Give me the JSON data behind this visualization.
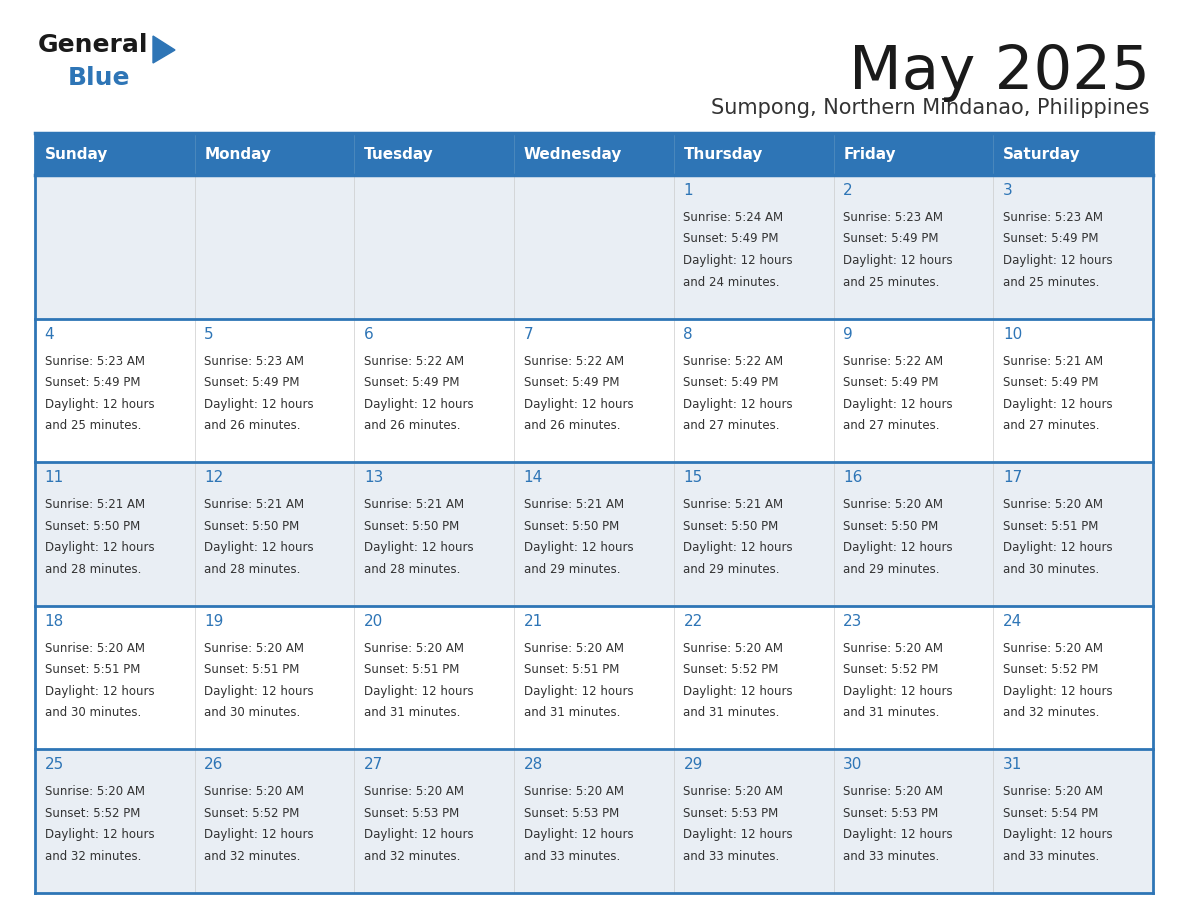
{
  "title": "May 2025",
  "subtitle": "Sumpong, Northern Mindanao, Philippines",
  "days_of_week": [
    "Sunday",
    "Monday",
    "Tuesday",
    "Wednesday",
    "Thursday",
    "Friday",
    "Saturday"
  ],
  "header_bg": "#2E75B6",
  "header_text": "#FFFFFF",
  "cell_bg_odd": "#E9EEF4",
  "cell_bg_even": "#FFFFFF",
  "border_color": "#2E75B6",
  "row_sep_color": "#2E75B6",
  "col_sep_color": "#CCCCCC",
  "text_color": "#333333",
  "day_num_color": "#2E75B6",
  "title_color": "#1A1A1A",
  "subtitle_color": "#333333",
  "calendar_data": [
    [
      {
        "day": null,
        "sunrise": null,
        "sunset": null,
        "daylight": null
      },
      {
        "day": null,
        "sunrise": null,
        "sunset": null,
        "daylight": null
      },
      {
        "day": null,
        "sunrise": null,
        "sunset": null,
        "daylight": null
      },
      {
        "day": null,
        "sunrise": null,
        "sunset": null,
        "daylight": null
      },
      {
        "day": 1,
        "sunrise": "5:24 AM",
        "sunset": "5:49 PM",
        "daylight": "12 hours and 24 minutes."
      },
      {
        "day": 2,
        "sunrise": "5:23 AM",
        "sunset": "5:49 PM",
        "daylight": "12 hours and 25 minutes."
      },
      {
        "day": 3,
        "sunrise": "5:23 AM",
        "sunset": "5:49 PM",
        "daylight": "12 hours and 25 minutes."
      }
    ],
    [
      {
        "day": 4,
        "sunrise": "5:23 AM",
        "sunset": "5:49 PM",
        "daylight": "12 hours and 25 minutes."
      },
      {
        "day": 5,
        "sunrise": "5:23 AM",
        "sunset": "5:49 PM",
        "daylight": "12 hours and 26 minutes."
      },
      {
        "day": 6,
        "sunrise": "5:22 AM",
        "sunset": "5:49 PM",
        "daylight": "12 hours and 26 minutes."
      },
      {
        "day": 7,
        "sunrise": "5:22 AM",
        "sunset": "5:49 PM",
        "daylight": "12 hours and 26 minutes."
      },
      {
        "day": 8,
        "sunrise": "5:22 AM",
        "sunset": "5:49 PM",
        "daylight": "12 hours and 27 minutes."
      },
      {
        "day": 9,
        "sunrise": "5:22 AM",
        "sunset": "5:49 PM",
        "daylight": "12 hours and 27 minutes."
      },
      {
        "day": 10,
        "sunrise": "5:21 AM",
        "sunset": "5:49 PM",
        "daylight": "12 hours and 27 minutes."
      }
    ],
    [
      {
        "day": 11,
        "sunrise": "5:21 AM",
        "sunset": "5:50 PM",
        "daylight": "12 hours and 28 minutes."
      },
      {
        "day": 12,
        "sunrise": "5:21 AM",
        "sunset": "5:50 PM",
        "daylight": "12 hours and 28 minutes."
      },
      {
        "day": 13,
        "sunrise": "5:21 AM",
        "sunset": "5:50 PM",
        "daylight": "12 hours and 28 minutes."
      },
      {
        "day": 14,
        "sunrise": "5:21 AM",
        "sunset": "5:50 PM",
        "daylight": "12 hours and 29 minutes."
      },
      {
        "day": 15,
        "sunrise": "5:21 AM",
        "sunset": "5:50 PM",
        "daylight": "12 hours and 29 minutes."
      },
      {
        "day": 16,
        "sunrise": "5:20 AM",
        "sunset": "5:50 PM",
        "daylight": "12 hours and 29 minutes."
      },
      {
        "day": 17,
        "sunrise": "5:20 AM",
        "sunset": "5:51 PM",
        "daylight": "12 hours and 30 minutes."
      }
    ],
    [
      {
        "day": 18,
        "sunrise": "5:20 AM",
        "sunset": "5:51 PM",
        "daylight": "12 hours and 30 minutes."
      },
      {
        "day": 19,
        "sunrise": "5:20 AM",
        "sunset": "5:51 PM",
        "daylight": "12 hours and 30 minutes."
      },
      {
        "day": 20,
        "sunrise": "5:20 AM",
        "sunset": "5:51 PM",
        "daylight": "12 hours and 31 minutes."
      },
      {
        "day": 21,
        "sunrise": "5:20 AM",
        "sunset": "5:51 PM",
        "daylight": "12 hours and 31 minutes."
      },
      {
        "day": 22,
        "sunrise": "5:20 AM",
        "sunset": "5:52 PM",
        "daylight": "12 hours and 31 minutes."
      },
      {
        "day": 23,
        "sunrise": "5:20 AM",
        "sunset": "5:52 PM",
        "daylight": "12 hours and 31 minutes."
      },
      {
        "day": 24,
        "sunrise": "5:20 AM",
        "sunset": "5:52 PM",
        "daylight": "12 hours and 32 minutes."
      }
    ],
    [
      {
        "day": 25,
        "sunrise": "5:20 AM",
        "sunset": "5:52 PM",
        "daylight": "12 hours and 32 minutes."
      },
      {
        "day": 26,
        "sunrise": "5:20 AM",
        "sunset": "5:52 PM",
        "daylight": "12 hours and 32 minutes."
      },
      {
        "day": 27,
        "sunrise": "5:20 AM",
        "sunset": "5:53 PM",
        "daylight": "12 hours and 32 minutes."
      },
      {
        "day": 28,
        "sunrise": "5:20 AM",
        "sunset": "5:53 PM",
        "daylight": "12 hours and 33 minutes."
      },
      {
        "day": 29,
        "sunrise": "5:20 AM",
        "sunset": "5:53 PM",
        "daylight": "12 hours and 33 minutes."
      },
      {
        "day": 30,
        "sunrise": "5:20 AM",
        "sunset": "5:53 PM",
        "daylight": "12 hours and 33 minutes."
      },
      {
        "day": 31,
        "sunrise": "5:20 AM",
        "sunset": "5:54 PM",
        "daylight": "12 hours and 33 minutes."
      }
    ]
  ]
}
